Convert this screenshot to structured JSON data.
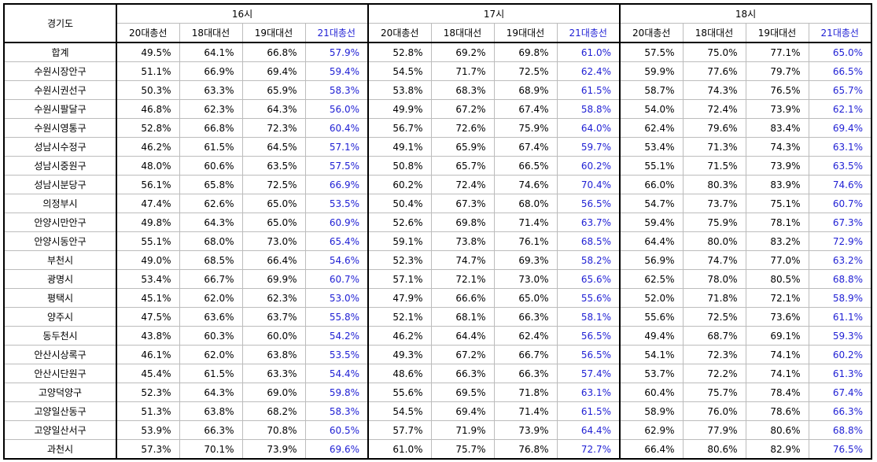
{
  "header": {
    "region_label": "경기도",
    "hours": [
      "16시",
      "17시",
      "18시"
    ],
    "elections": [
      "20대총선",
      "18대대선",
      "19대대선",
      "21대총선"
    ]
  },
  "colors": {
    "highlight_column": "#1f1fd4",
    "gridline": "#bcbcbc",
    "group_border": "#000000"
  },
  "rows": [
    {
      "region": "합계",
      "values": [
        "49.5%",
        "64.1%",
        "66.8%",
        "57.9%",
        "52.8%",
        "69.2%",
        "69.8%",
        "61.0%",
        "57.5%",
        "75.0%",
        "77.1%",
        "65.0%"
      ]
    },
    {
      "region": "수원시장안구",
      "values": [
        "51.1%",
        "66.9%",
        "69.4%",
        "59.4%",
        "54.5%",
        "71.7%",
        "72.5%",
        "62.4%",
        "59.9%",
        "77.6%",
        "79.7%",
        "66.5%"
      ]
    },
    {
      "region": "수원시권선구",
      "values": [
        "50.3%",
        "63.3%",
        "65.9%",
        "58.3%",
        "53.8%",
        "68.3%",
        "68.9%",
        "61.5%",
        "58.7%",
        "74.3%",
        "76.5%",
        "65.7%"
      ]
    },
    {
      "region": "수원시팔달구",
      "values": [
        "46.8%",
        "62.3%",
        "64.3%",
        "56.0%",
        "49.9%",
        "67.2%",
        "67.4%",
        "58.8%",
        "54.0%",
        "72.4%",
        "73.9%",
        "62.1%"
      ]
    },
    {
      "region": "수원시영통구",
      "values": [
        "52.8%",
        "66.8%",
        "72.3%",
        "60.4%",
        "56.7%",
        "72.6%",
        "75.9%",
        "64.0%",
        "62.4%",
        "79.6%",
        "83.4%",
        "69.4%"
      ]
    },
    {
      "region": "성남시수정구",
      "values": [
        "46.2%",
        "61.5%",
        "64.5%",
        "57.1%",
        "49.1%",
        "65.9%",
        "67.4%",
        "59.7%",
        "53.4%",
        "71.3%",
        "74.3%",
        "63.1%"
      ]
    },
    {
      "region": "성남시중원구",
      "values": [
        "48.0%",
        "60.6%",
        "63.5%",
        "57.5%",
        "50.8%",
        "65.7%",
        "66.5%",
        "60.2%",
        "55.1%",
        "71.5%",
        "73.9%",
        "63.5%"
      ]
    },
    {
      "region": "성남시분당구",
      "values": [
        "56.1%",
        "65.8%",
        "72.5%",
        "66.9%",
        "60.2%",
        "72.4%",
        "74.6%",
        "70.4%",
        "66.0%",
        "80.3%",
        "83.9%",
        "74.6%"
      ]
    },
    {
      "region": "의정부시",
      "values": [
        "47.4%",
        "62.6%",
        "65.0%",
        "53.5%",
        "50.4%",
        "67.3%",
        "68.0%",
        "56.5%",
        "54.7%",
        "73.7%",
        "75.1%",
        "60.7%"
      ]
    },
    {
      "region": "안양시만안구",
      "values": [
        "49.8%",
        "64.3%",
        "65.0%",
        "60.9%",
        "52.6%",
        "69.8%",
        "71.4%",
        "63.7%",
        "59.4%",
        "75.9%",
        "78.1%",
        "67.3%"
      ]
    },
    {
      "region": "안양시동안구",
      "values": [
        "55.1%",
        "68.0%",
        "73.0%",
        "65.4%",
        "59.1%",
        "73.8%",
        "76.1%",
        "68.5%",
        "64.4%",
        "80.0%",
        "83.2%",
        "72.9%"
      ]
    },
    {
      "region": "부천시",
      "values": [
        "49.0%",
        "68.5%",
        "66.4%",
        "54.6%",
        "52.3%",
        "74.7%",
        "69.3%",
        "58.2%",
        "56.9%",
        "74.7%",
        "77.0%",
        "63.2%"
      ]
    },
    {
      "region": "광명시",
      "values": [
        "53.4%",
        "66.7%",
        "69.9%",
        "60.7%",
        "57.1%",
        "72.1%",
        "73.0%",
        "65.6%",
        "62.5%",
        "78.0%",
        "80.5%",
        "68.8%"
      ]
    },
    {
      "region": "평택시",
      "values": [
        "45.1%",
        "62.0%",
        "62.3%",
        "53.0%",
        "47.9%",
        "66.6%",
        "65.0%",
        "55.6%",
        "52.0%",
        "71.8%",
        "72.1%",
        "58.9%"
      ]
    },
    {
      "region": "양주시",
      "values": [
        "47.5%",
        "63.6%",
        "63.7%",
        "55.8%",
        "52.1%",
        "68.1%",
        "66.3%",
        "58.1%",
        "55.6%",
        "72.5%",
        "73.6%",
        "61.1%"
      ]
    },
    {
      "region": "동두천시",
      "values": [
        "43.8%",
        "60.3%",
        "60.0%",
        "54.2%",
        "46.2%",
        "64.4%",
        "62.4%",
        "56.5%",
        "49.4%",
        "68.7%",
        "69.1%",
        "59.3%"
      ]
    },
    {
      "region": "안산시상록구",
      "values": [
        "46.1%",
        "62.0%",
        "63.8%",
        "53.5%",
        "49.3%",
        "67.2%",
        "66.7%",
        "56.5%",
        "54.1%",
        "72.3%",
        "74.1%",
        "60.2%"
      ]
    },
    {
      "region": "안산시단원구",
      "values": [
        "45.4%",
        "61.5%",
        "63.3%",
        "54.4%",
        "48.6%",
        "66.3%",
        "66.3%",
        "57.4%",
        "53.7%",
        "72.2%",
        "74.1%",
        "61.3%"
      ]
    },
    {
      "region": "고양덕양구",
      "values": [
        "52.3%",
        "64.3%",
        "69.0%",
        "59.8%",
        "55.6%",
        "69.5%",
        "71.8%",
        "63.1%",
        "60.4%",
        "75.7%",
        "78.4%",
        "67.4%"
      ]
    },
    {
      "region": "고양일산동구",
      "values": [
        "51.3%",
        "63.8%",
        "68.2%",
        "58.3%",
        "54.5%",
        "69.4%",
        "71.4%",
        "61.5%",
        "58.9%",
        "76.0%",
        "78.6%",
        "66.3%"
      ]
    },
    {
      "region": "고양일산서구",
      "values": [
        "53.9%",
        "66.3%",
        "70.8%",
        "60.5%",
        "57.7%",
        "71.9%",
        "73.9%",
        "64.4%",
        "62.9%",
        "77.9%",
        "80.6%",
        "68.8%"
      ]
    },
    {
      "region": "과천시",
      "values": [
        "57.3%",
        "70.1%",
        "73.9%",
        "69.6%",
        "61.0%",
        "75.7%",
        "76.8%",
        "72.7%",
        "66.4%",
        "80.6%",
        "82.9%",
        "76.5%"
      ]
    }
  ]
}
